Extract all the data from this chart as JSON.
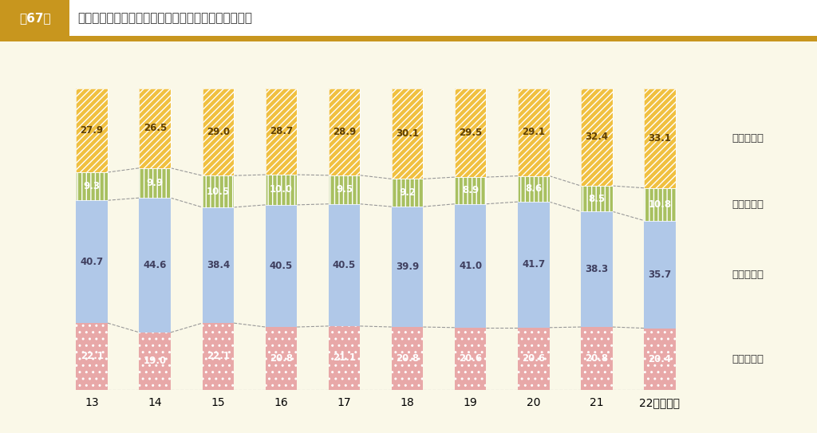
{
  "years": [
    "13",
    "14",
    "15",
    "16",
    "17",
    "18",
    "19",
    "20",
    "21",
    "22（年度）"
  ],
  "kokko": [
    22.1,
    19.0,
    22.1,
    20.8,
    21.1,
    20.8,
    20.6,
    20.6,
    20.8,
    20.4
  ],
  "chiho_sai": [
    40.7,
    44.6,
    38.4,
    40.5,
    40.5,
    39.9,
    41.0,
    41.7,
    38.3,
    35.7
  ],
  "sono_ta": [
    9.3,
    9.9,
    10.5,
    10.0,
    9.5,
    9.2,
    8.9,
    8.6,
    8.5,
    10.8
  ],
  "ippan": [
    27.9,
    26.5,
    29.0,
    28.7,
    28.9,
    30.1,
    29.5,
    29.1,
    32.4,
    33.1
  ],
  "legend_labels": [
    "一般財源等",
    "そ　の　他",
    "地　方　債",
    "国庫支出金"
  ],
  "title": "普通建設事業費の財源構成比の推移（その１　総計）",
  "fig_label": "第67図",
  "bg_color": "#faf8e8",
  "header_bg": "#c8961e",
  "kokko_color": "#e8a8a8",
  "chiho_color": "#b0c8e8",
  "sonota_color": "#a8c060",
  "ippan_color": "#f0c040",
  "line_color": "#999999",
  "text_dark": "#333333",
  "bar_width": 0.5,
  "ylim": [
    0,
    112
  ]
}
